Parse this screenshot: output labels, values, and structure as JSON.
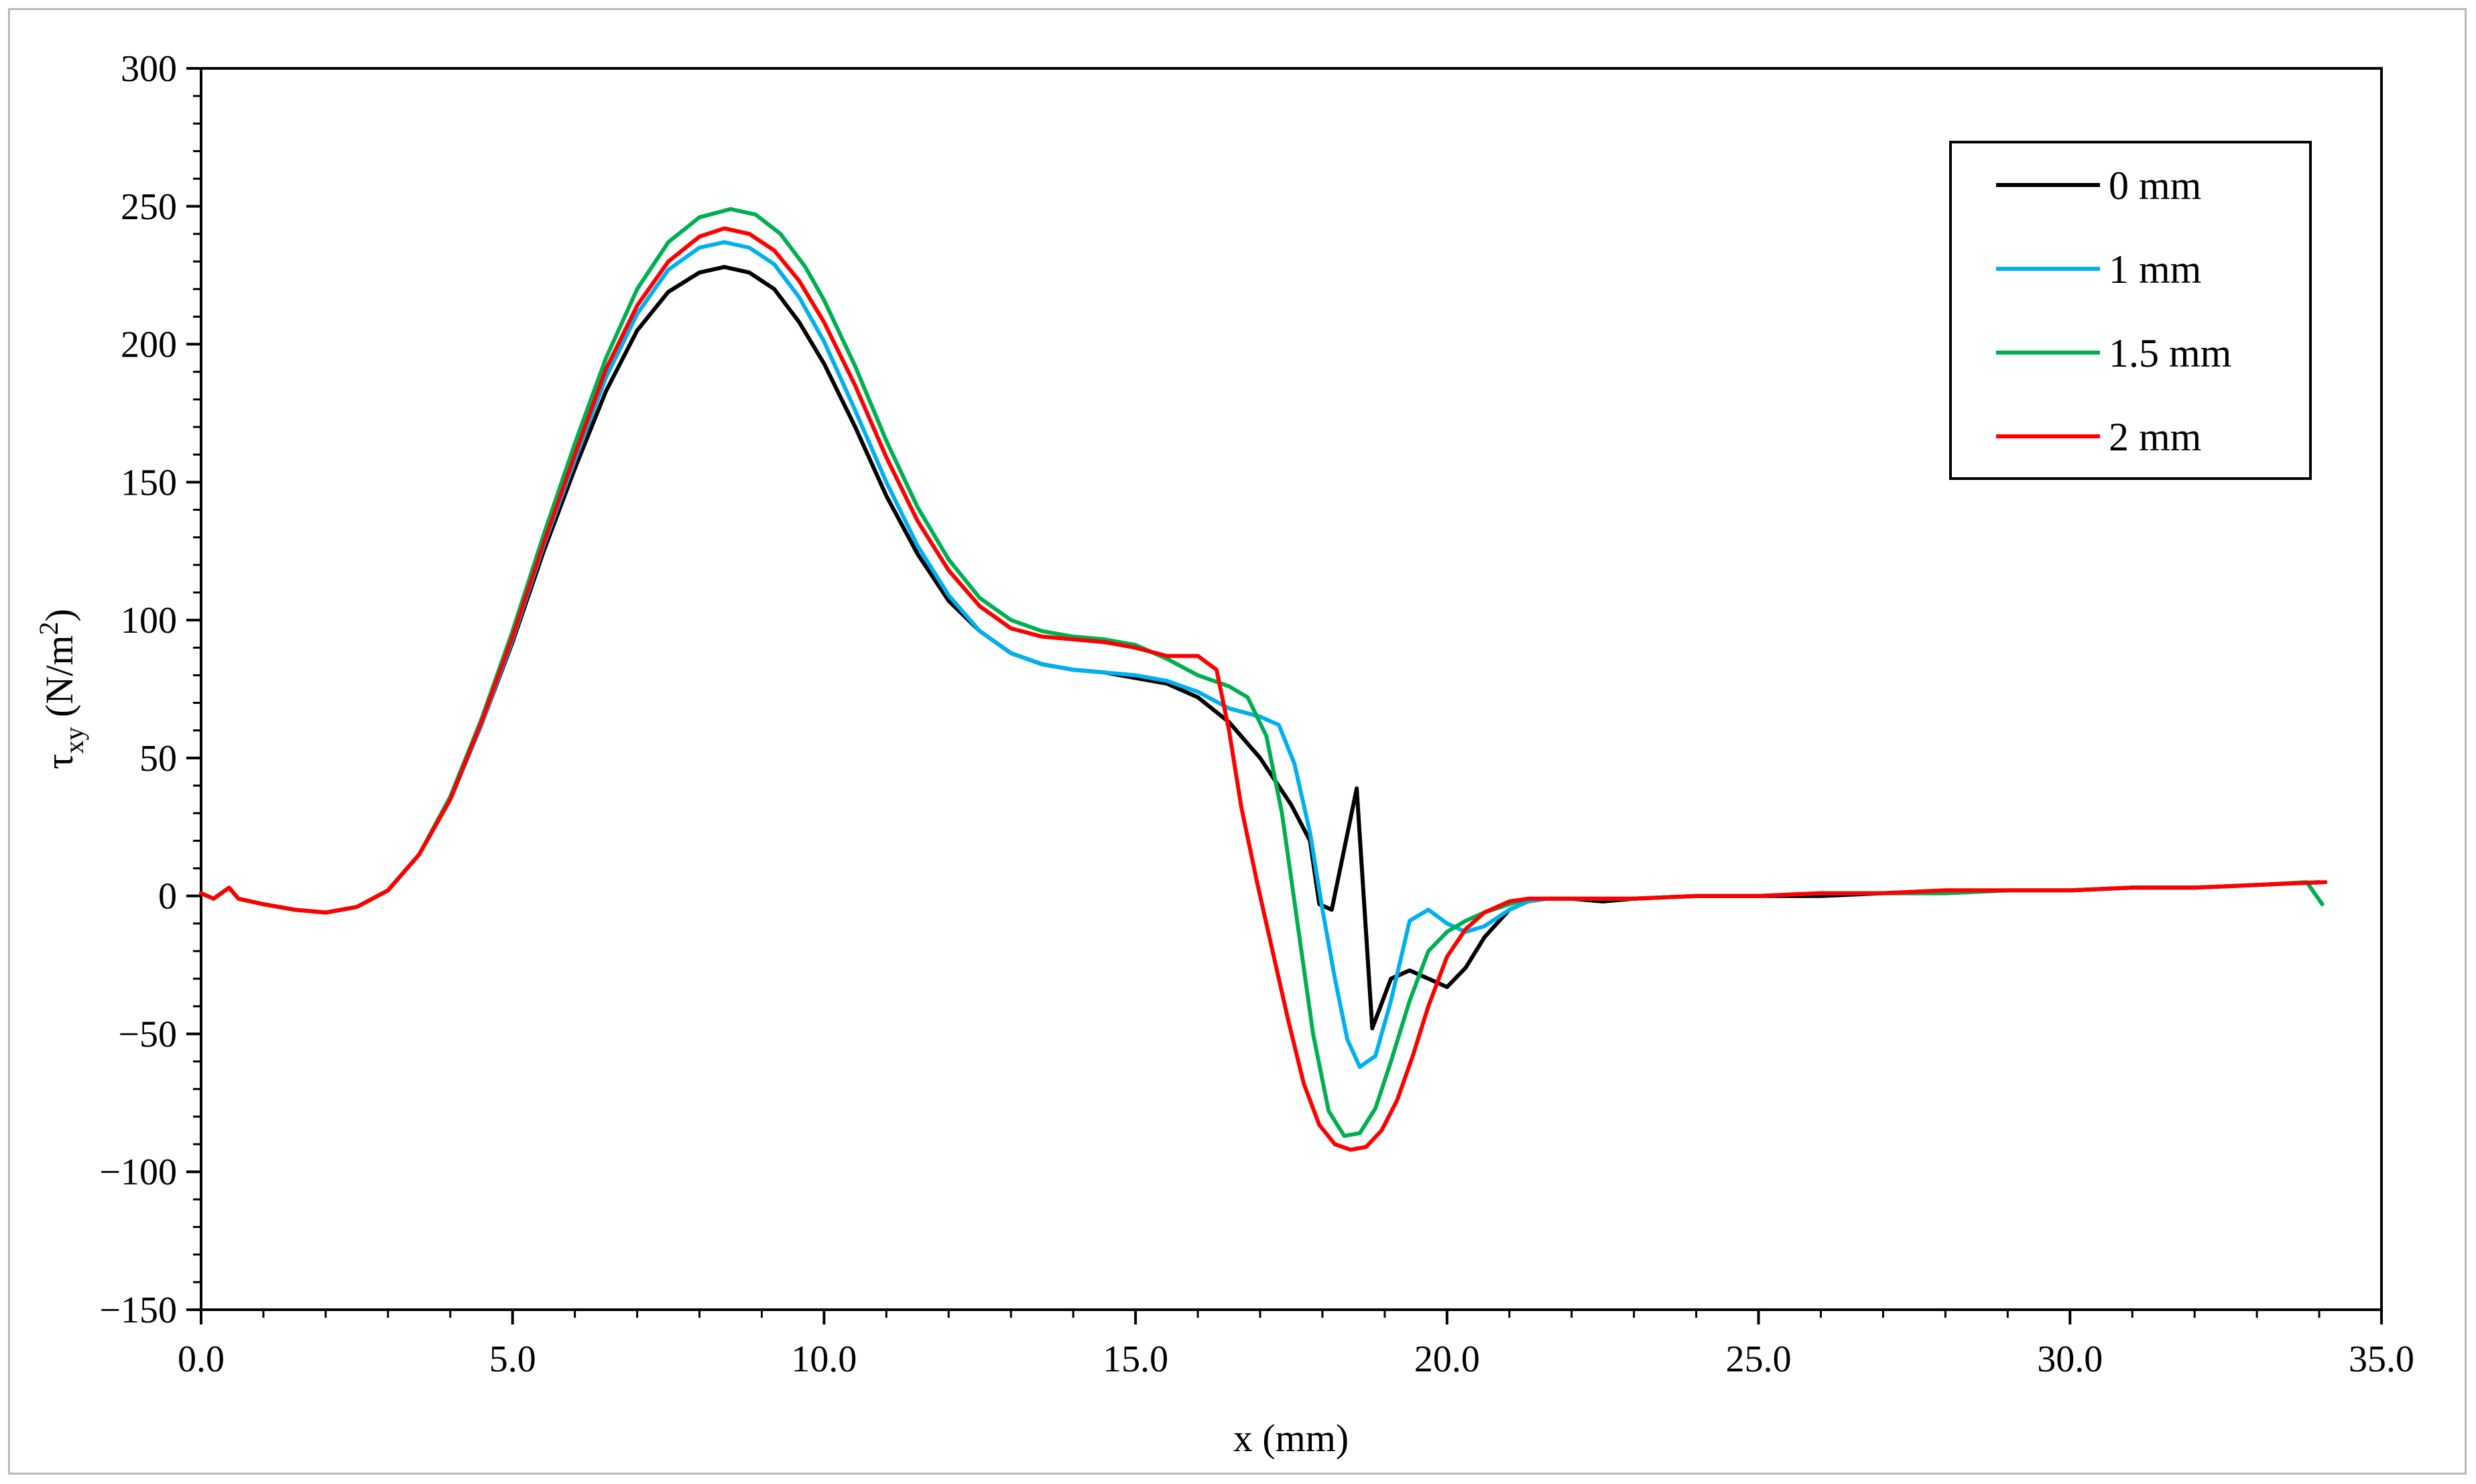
{
  "chart_data": {
    "type": "line",
    "title": "",
    "xlabel": "x (mm)",
    "ylabel": {
      "symbol": "τ",
      "subscript": "xy",
      "unit_prefix": " (N/m",
      "unit_superscript": "2",
      "unit_suffix": ")"
    },
    "xlim": [
      0,
      35
    ],
    "ylim": [
      -150,
      300
    ],
    "x_ticks": [
      0,
      5,
      10,
      15,
      20,
      25,
      30,
      35
    ],
    "x_tick_labels": [
      "0.0",
      "5.0",
      "10.0",
      "15.0",
      "20.0",
      "25.0",
      "30.0",
      "35.0"
    ],
    "y_ticks": [
      -150,
      -100,
      -50,
      0,
      50,
      100,
      150,
      200,
      250,
      300
    ],
    "y_tick_labels": [
      "−150",
      "−100",
      "−50",
      "0",
      "50",
      "100",
      "150",
      "200",
      "250",
      "300"
    ],
    "grid": false,
    "legend_position": "top-right",
    "series": [
      {
        "name": "0 mm",
        "color": "#000000",
        "points": [
          [
            0,
            1
          ],
          [
            0.2,
            -1
          ],
          [
            0.45,
            3
          ],
          [
            0.6,
            -1
          ],
          [
            1,
            -3
          ],
          [
            1.5,
            -5
          ],
          [
            2,
            -6
          ],
          [
            2.5,
            -4
          ],
          [
            3,
            2
          ],
          [
            3.5,
            15
          ],
          [
            4,
            35
          ],
          [
            4.5,
            62
          ],
          [
            5,
            92
          ],
          [
            5.5,
            125
          ],
          [
            6,
            155
          ],
          [
            6.5,
            183
          ],
          [
            7,
            205
          ],
          [
            7.5,
            219
          ],
          [
            8,
            226
          ],
          [
            8.4,
            228
          ],
          [
            8.8,
            226
          ],
          [
            9.2,
            220
          ],
          [
            9.6,
            208
          ],
          [
            10,
            193
          ],
          [
            10.5,
            170
          ],
          [
            11,
            145
          ],
          [
            11.5,
            124
          ],
          [
            12,
            107
          ],
          [
            12.5,
            96
          ],
          [
            13,
            88
          ],
          [
            13.5,
            84
          ],
          [
            14,
            82
          ],
          [
            14.5,
            81
          ],
          [
            15,
            79
          ],
          [
            15.5,
            77
          ],
          [
            16,
            72
          ],
          [
            16.5,
            63
          ],
          [
            17,
            50
          ],
          [
            17.5,
            33
          ],
          [
            17.8,
            20
          ],
          [
            17.95,
            -3
          ],
          [
            18.15,
            -5
          ],
          [
            18.55,
            39
          ],
          [
            18.8,
            -48
          ],
          [
            19.1,
            -30
          ],
          [
            19.4,
            -27
          ],
          [
            19.7,
            -30
          ],
          [
            20,
            -33
          ],
          [
            20.3,
            -26
          ],
          [
            20.6,
            -15
          ],
          [
            21,
            -5
          ],
          [
            21.3,
            -2
          ],
          [
            21.6,
            -1
          ],
          [
            22,
            -1
          ],
          [
            22.5,
            -2
          ],
          [
            23,
            -1
          ],
          [
            24,
            0
          ],
          [
            25,
            0
          ],
          [
            26,
            0
          ],
          [
            27,
            1
          ],
          [
            28,
            2
          ],
          [
            29,
            2
          ],
          [
            30,
            2
          ],
          [
            31,
            3
          ],
          [
            32,
            3
          ],
          [
            33,
            4
          ],
          [
            34,
            5
          ]
        ]
      },
      {
        "name": "1 mm",
        "color": "#00b0f0",
        "points": [
          [
            0,
            1
          ],
          [
            0.2,
            -1
          ],
          [
            0.45,
            3
          ],
          [
            0.6,
            -1
          ],
          [
            1,
            -3
          ],
          [
            1.5,
            -5
          ],
          [
            2,
            -6
          ],
          [
            2.5,
            -4
          ],
          [
            3,
            2
          ],
          [
            3.5,
            15
          ],
          [
            4,
            35
          ],
          [
            4.5,
            62
          ],
          [
            5,
            93
          ],
          [
            5.5,
            127
          ],
          [
            6,
            158
          ],
          [
            6.5,
            188
          ],
          [
            7,
            211
          ],
          [
            7.5,
            227
          ],
          [
            8,
            235
          ],
          [
            8.4,
            237
          ],
          [
            8.8,
            235
          ],
          [
            9.2,
            229
          ],
          [
            9.6,
            217
          ],
          [
            10,
            201
          ],
          [
            10.5,
            176
          ],
          [
            11,
            150
          ],
          [
            11.5,
            127
          ],
          [
            12,
            109
          ],
          [
            12.5,
            96
          ],
          [
            13,
            88
          ],
          [
            13.5,
            84
          ],
          [
            14,
            82
          ],
          [
            14.5,
            81
          ],
          [
            15,
            80
          ],
          [
            15.5,
            78
          ],
          [
            16,
            74
          ],
          [
            16.5,
            68
          ],
          [
            17,
            65
          ],
          [
            17.3,
            62
          ],
          [
            17.55,
            48
          ],
          [
            17.8,
            23
          ],
          [
            18,
            -5
          ],
          [
            18.2,
            -30
          ],
          [
            18.4,
            -52
          ],
          [
            18.6,
            -62
          ],
          [
            18.85,
            -58
          ],
          [
            19.1,
            -38
          ],
          [
            19.4,
            -9
          ],
          [
            19.7,
            -5
          ],
          [
            20,
            -10
          ],
          [
            20.3,
            -13
          ],
          [
            20.6,
            -11
          ],
          [
            21,
            -5
          ],
          [
            21.3,
            -2
          ],
          [
            21.6,
            -1
          ],
          [
            22,
            -1
          ],
          [
            23,
            -1
          ],
          [
            24,
            0
          ],
          [
            25,
            0
          ],
          [
            26,
            1
          ],
          [
            27,
            1
          ],
          [
            28,
            1
          ],
          [
            29,
            2
          ],
          [
            30,
            2
          ],
          [
            31,
            3
          ],
          [
            32,
            3
          ],
          [
            33,
            4
          ],
          [
            34,
            5
          ]
        ]
      },
      {
        "name": "1.5 mm",
        "color": "#00b050",
        "points": [
          [
            0,
            1
          ],
          [
            0.2,
            -1
          ],
          [
            0.45,
            3
          ],
          [
            0.6,
            -1
          ],
          [
            1,
            -3
          ],
          [
            1.5,
            -5
          ],
          [
            2,
            -6
          ],
          [
            2.5,
            -4
          ],
          [
            3,
            2
          ],
          [
            3.5,
            15
          ],
          [
            4,
            36
          ],
          [
            4.5,
            64
          ],
          [
            5,
            96
          ],
          [
            5.5,
            131
          ],
          [
            6,
            164
          ],
          [
            6.5,
            195
          ],
          [
            7,
            220
          ],
          [
            7.5,
            237
          ],
          [
            8,
            246
          ],
          [
            8.5,
            249
          ],
          [
            8.9,
            247
          ],
          [
            9.3,
            240
          ],
          [
            9.7,
            228
          ],
          [
            10,
            216
          ],
          [
            10.5,
            192
          ],
          [
            11,
            165
          ],
          [
            11.5,
            141
          ],
          [
            12,
            122
          ],
          [
            12.5,
            108
          ],
          [
            13,
            100
          ],
          [
            13.5,
            96
          ],
          [
            14,
            94
          ],
          [
            14.5,
            93
          ],
          [
            15,
            91
          ],
          [
            15.5,
            86
          ],
          [
            16,
            80
          ],
          [
            16.5,
            76
          ],
          [
            16.8,
            72
          ],
          [
            17.1,
            58
          ],
          [
            17.35,
            30
          ],
          [
            17.6,
            -10
          ],
          [
            17.85,
            -50
          ],
          [
            18.1,
            -78
          ],
          [
            18.35,
            -87
          ],
          [
            18.6,
            -86
          ],
          [
            18.85,
            -77
          ],
          [
            19.1,
            -60
          ],
          [
            19.4,
            -38
          ],
          [
            19.7,
            -20
          ],
          [
            20,
            -13
          ],
          [
            20.3,
            -9
          ],
          [
            20.6,
            -6
          ],
          [
            21,
            -3
          ],
          [
            21.3,
            -1
          ],
          [
            21.6,
            -1
          ],
          [
            22,
            -1
          ],
          [
            23,
            -1
          ],
          [
            24,
            0
          ],
          [
            25,
            0
          ],
          [
            26,
            1
          ],
          [
            27,
            1
          ],
          [
            28,
            1
          ],
          [
            29,
            2
          ],
          [
            30,
            2
          ],
          [
            31,
            3
          ],
          [
            32,
            3
          ],
          [
            33,
            4
          ],
          [
            33.8,
            5
          ],
          [
            34.05,
            -3
          ]
        ]
      },
      {
        "name": "2 mm",
        "color": "#ff0000",
        "points": [
          [
            0,
            1
          ],
          [
            0.2,
            -1
          ],
          [
            0.45,
            3
          ],
          [
            0.6,
            -1
          ],
          [
            1,
            -3
          ],
          [
            1.5,
            -5
          ],
          [
            2,
            -6
          ],
          [
            2.5,
            -4
          ],
          [
            3,
            2
          ],
          [
            3.5,
            15
          ],
          [
            4,
            35
          ],
          [
            4.5,
            63
          ],
          [
            5,
            94
          ],
          [
            5.5,
            128
          ],
          [
            6,
            160
          ],
          [
            6.5,
            191
          ],
          [
            7,
            214
          ],
          [
            7.5,
            230
          ],
          [
            8,
            239
          ],
          [
            8.4,
            242
          ],
          [
            8.8,
            240
          ],
          [
            9.2,
            234
          ],
          [
            9.6,
            223
          ],
          [
            10,
            208
          ],
          [
            10.5,
            185
          ],
          [
            11,
            159
          ],
          [
            11.5,
            136
          ],
          [
            12,
            118
          ],
          [
            12.5,
            105
          ],
          [
            13,
            97
          ],
          [
            13.5,
            94
          ],
          [
            14,
            93
          ],
          [
            14.5,
            92
          ],
          [
            15,
            90
          ],
          [
            15.5,
            87
          ],
          [
            16,
            87
          ],
          [
            16.3,
            82
          ],
          [
            16.5,
            60
          ],
          [
            16.7,
            32
          ],
          [
            16.95,
            5
          ],
          [
            17.2,
            -20
          ],
          [
            17.45,
            -45
          ],
          [
            17.7,
            -68
          ],
          [
            17.95,
            -83
          ],
          [
            18.2,
            -90
          ],
          [
            18.45,
            -92
          ],
          [
            18.7,
            -91
          ],
          [
            18.95,
            -85
          ],
          [
            19.2,
            -74
          ],
          [
            19.45,
            -58
          ],
          [
            19.7,
            -40
          ],
          [
            20,
            -22
          ],
          [
            20.3,
            -12
          ],
          [
            20.6,
            -6
          ],
          [
            21,
            -2
          ],
          [
            21.3,
            -1
          ],
          [
            21.6,
            -1
          ],
          [
            22,
            -1
          ],
          [
            23,
            -1
          ],
          [
            24,
            0
          ],
          [
            25,
            0
          ],
          [
            26,
            1
          ],
          [
            27,
            1
          ],
          [
            28,
            2
          ],
          [
            29,
            2
          ],
          [
            30,
            2
          ],
          [
            31,
            3
          ],
          [
            32,
            3
          ],
          [
            33,
            4
          ],
          [
            34.1,
            5
          ]
        ]
      }
    ]
  }
}
